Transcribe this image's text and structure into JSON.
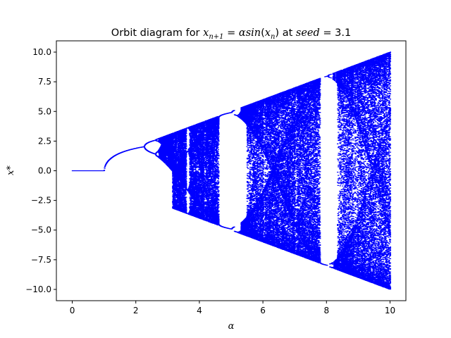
{
  "chart_data": {
    "type": "scatter",
    "title": "Orbit diagram for x_{n+1} = αsin(x_n) at seed = 3.1",
    "title_parts": {
      "prefix": "Orbit diagram for ",
      "var": "x",
      "sub1": "n+1",
      "eq": " = ",
      "alpha": "α",
      "sin": "sin",
      "open": "(",
      "var2": "x",
      "sub2": "n",
      "close": ")",
      "at": " at ",
      "seed": "seed",
      "eq2": " = ",
      "seed_value": "3.1"
    },
    "xlabel": "α",
    "ylabel": "x*",
    "xlim": [
      -0.5,
      10.5
    ],
    "ylim": [
      -10.95,
      10.95
    ],
    "xticks": [
      0,
      2,
      4,
      6,
      8,
      10
    ],
    "xtick_labels": [
      "0",
      "2",
      "4",
      "6",
      "8",
      "10"
    ],
    "yticks": [
      -10.0,
      -7.5,
      -5.0,
      -2.5,
      0.0,
      2.5,
      5.0,
      7.5,
      10.0
    ],
    "ytick_labels": [
      "−10.0",
      "−7.5",
      "−5.0",
      "−2.5",
      "0.0",
      "2.5",
      "5.0",
      "7.5",
      "10.0"
    ],
    "grid": false,
    "point_color": "#0000ff",
    "map": "x_{n+1} = alpha * sin(x_n)",
    "seed": 3.1,
    "alpha_range": [
      0,
      10
    ],
    "series": [
      {
        "values_note": "iterated orbit points for each alpha in [0, 10]"
      }
    ]
  }
}
